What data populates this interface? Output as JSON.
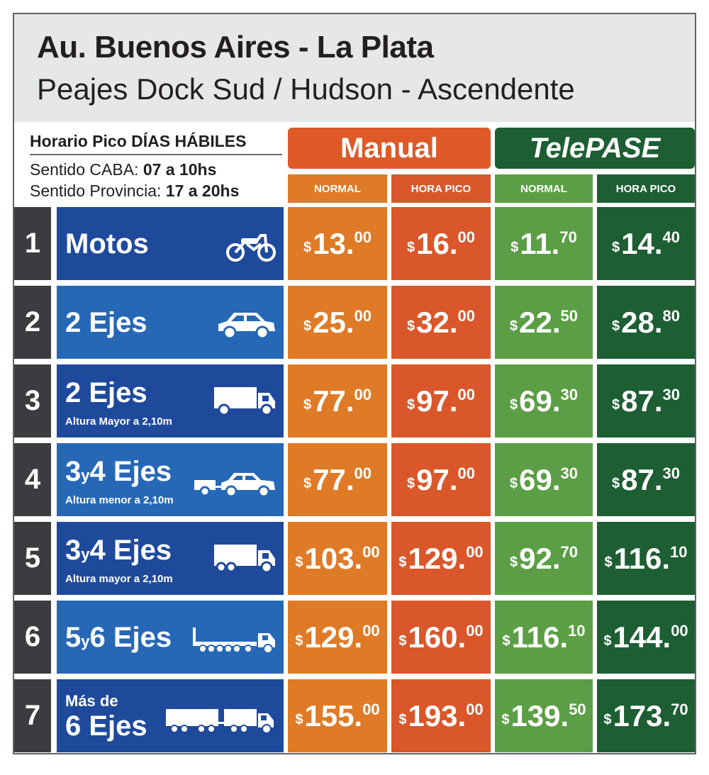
{
  "header": {
    "title": "Au. Buenos Aires - La Plata",
    "subtitle": "Peajes Dock Sud / Hudson - Ascendente"
  },
  "schedule": {
    "title": "Horario Pico DÍAS HÁBILES",
    "caba_label": "Sentido CABA: ",
    "caba_hours": "07 a 10hs",
    "provincia_label": "Sentido Provincia: ",
    "provincia_hours": "17 a 20hs"
  },
  "columns": {
    "manual": "Manual",
    "telepase": "TelePASE",
    "normal": "NORMAL",
    "hora_pico": "HORA PICO"
  },
  "colors": {
    "manual_normal": "#df7a26",
    "manual_pico": "#d9572a",
    "telepase_normal": "#5c9e45",
    "telepase_pico": "#1d5e33",
    "blue_dark": "#1f4a9c",
    "blue_light": "#2768b6"
  },
  "currency": "$",
  "rows": [
    {
      "num": "1",
      "label": "Motos",
      "sub": "",
      "icon": "motorcycle-icon",
      "prices": [
        [
          "13.",
          "00"
        ],
        [
          "16.",
          "00"
        ],
        [
          "11.",
          "70"
        ],
        [
          "14.",
          "40"
        ]
      ]
    },
    {
      "num": "2",
      "label": "2 Ejes",
      "sub": "",
      "icon": "car-icon",
      "prices": [
        [
          "25.",
          "00"
        ],
        [
          "32.",
          "00"
        ],
        [
          "22.",
          "50"
        ],
        [
          "28.",
          "80"
        ]
      ]
    },
    {
      "num": "3",
      "label": "2 Ejes",
      "sub": "Altura Mayor a 2,10m",
      "icon": "truck-icon",
      "prices": [
        [
          "77.",
          "00"
        ],
        [
          "97.",
          "00"
        ],
        [
          "69.",
          "30"
        ],
        [
          "87.",
          "30"
        ]
      ]
    },
    {
      "num": "4",
      "label_a": "3",
      "label_y": "y",
      "label_b": "4 Ejes",
      "sub": "Altura menor a 2,10m",
      "icon": "car-with-trailer-icon",
      "prices": [
        [
          "77.",
          "00"
        ],
        [
          "97.",
          "00"
        ],
        [
          "69.",
          "30"
        ],
        [
          "87.",
          "30"
        ]
      ]
    },
    {
      "num": "5",
      "label_a": "3",
      "label_y": "y",
      "label_b": "4 Ejes",
      "sub": "Altura mayor a 2,10m",
      "icon": "truck-dual-axle-icon",
      "prices": [
        [
          "103.",
          "00"
        ],
        [
          "129.",
          "00"
        ],
        [
          "92.",
          "70"
        ],
        [
          "116.",
          "10"
        ]
      ]
    },
    {
      "num": "6",
      "label_a": "5",
      "label_y": "y",
      "label_b": "6 Ejes",
      "sub": "",
      "icon": "semi-trailer-icon",
      "prices": [
        [
          "129.",
          "00"
        ],
        [
          "160.",
          "00"
        ],
        [
          "116.",
          "10"
        ],
        [
          "144.",
          "00"
        ]
      ]
    },
    {
      "num": "7",
      "label_top": "Más de",
      "label": "6 Ejes",
      "sub": "",
      "icon": "truck-and-trailer-icon",
      "prices": [
        [
          "155.",
          "00"
        ],
        [
          "193.",
          "00"
        ],
        [
          "139.",
          "50"
        ],
        [
          "173.",
          "70"
        ]
      ]
    }
  ]
}
